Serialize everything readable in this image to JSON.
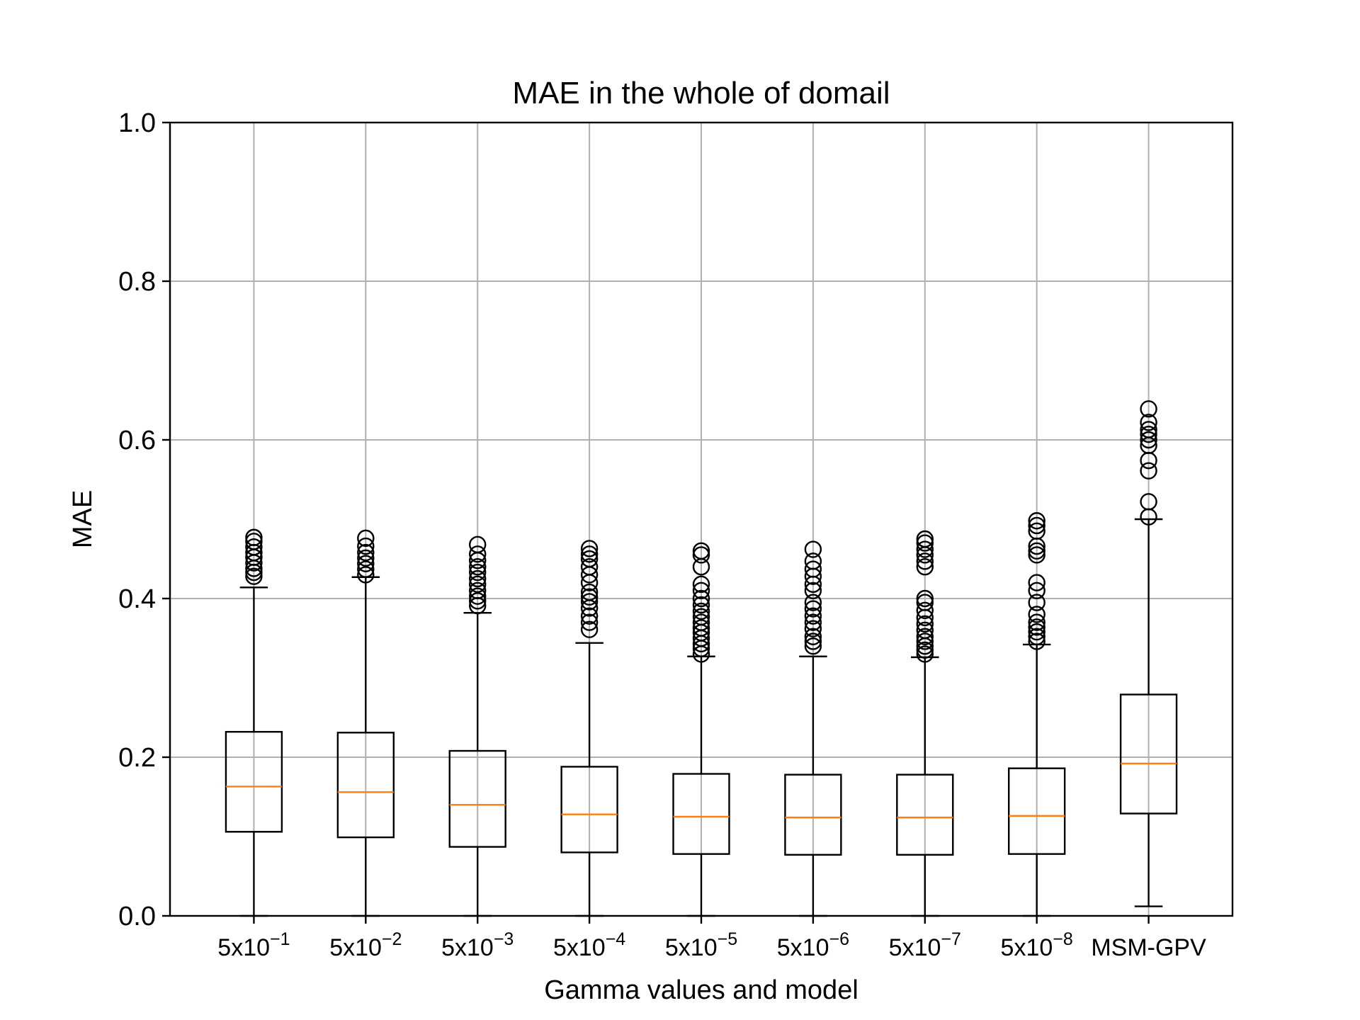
{
  "chart_data": {
    "type": "box",
    "title": "MAE in the whole of domail",
    "xlabel": "Gamma values and model",
    "ylabel": "MAE",
    "ylim": [
      0.0,
      1.0
    ],
    "yticks": [
      "0.0",
      "0.2",
      "0.4",
      "0.6",
      "0.8",
      "1.0"
    ],
    "grid": true,
    "colors": {
      "box": "#000000",
      "median": "#ff7f0e",
      "grid": "#b0b0b0"
    },
    "categories": [
      {
        "base": "5x10",
        "exp": "−1"
      },
      {
        "base": "5x10",
        "exp": "−2"
      },
      {
        "base": "5x10",
        "exp": "−3"
      },
      {
        "base": "5x10",
        "exp": "−4"
      },
      {
        "base": "5x10",
        "exp": "−5"
      },
      {
        "base": "5x10",
        "exp": "−6"
      },
      {
        "base": "5x10",
        "exp": "−7"
      },
      {
        "base": "5x10",
        "exp": "−8"
      },
      {
        "base": "MSM-GPV",
        "exp": ""
      }
    ],
    "boxes": [
      {
        "whisker_low": 0.0,
        "q1": 0.106,
        "median": 0.163,
        "q3": 0.232,
        "whisker_high": 0.414,
        "outliers": [
          0.428,
          0.433,
          0.438,
          0.445,
          0.452,
          0.458,
          0.465,
          0.472,
          0.477
        ]
      },
      {
        "whisker_low": 0.0,
        "q1": 0.099,
        "median": 0.156,
        "q3": 0.231,
        "whisker_high": 0.427,
        "outliers": [
          0.43,
          0.437,
          0.444,
          0.451,
          0.458,
          0.466,
          0.476
        ]
      },
      {
        "whisker_low": 0.0,
        "q1": 0.087,
        "median": 0.14,
        "q3": 0.208,
        "whisker_high": 0.382,
        "outliers": [
          0.391,
          0.397,
          0.403,
          0.41,
          0.418,
          0.425,
          0.433,
          0.44,
          0.448,
          0.456,
          0.468
        ]
      },
      {
        "whisker_low": 0.0,
        "q1": 0.08,
        "median": 0.128,
        "q3": 0.188,
        "whisker_high": 0.344,
        "outliers": [
          0.361,
          0.37,
          0.378,
          0.388,
          0.396,
          0.402,
          0.408,
          0.42,
          0.43,
          0.44,
          0.45,
          0.456,
          0.463
        ]
      },
      {
        "whisker_low": 0.0,
        "q1": 0.078,
        "median": 0.125,
        "q3": 0.179,
        "whisker_high": 0.327,
        "outliers": [
          0.33,
          0.337,
          0.343,
          0.35,
          0.357,
          0.363,
          0.37,
          0.377,
          0.384,
          0.392,
          0.4,
          0.41,
          0.418,
          0.44,
          0.455,
          0.46
        ]
      },
      {
        "whisker_low": 0.0,
        "q1": 0.077,
        "median": 0.124,
        "q3": 0.178,
        "whisker_high": 0.327,
        "outliers": [
          0.34,
          0.346,
          0.352,
          0.362,
          0.37,
          0.378,
          0.387,
          0.395,
          0.41,
          0.418,
          0.428,
          0.437,
          0.447,
          0.462
        ]
      },
      {
        "whisker_low": 0.0,
        "q1": 0.077,
        "median": 0.124,
        "q3": 0.178,
        "whisker_high": 0.326,
        "outliers": [
          0.33,
          0.335,
          0.34,
          0.346,
          0.352,
          0.36,
          0.368,
          0.376,
          0.385,
          0.395,
          0.4,
          0.44,
          0.447,
          0.455,
          0.462,
          0.47,
          0.475
        ]
      },
      {
        "whisker_low": 0.0,
        "q1": 0.078,
        "median": 0.126,
        "q3": 0.186,
        "whisker_high": 0.342,
        "outliers": [
          0.346,
          0.352,
          0.358,
          0.364,
          0.37,
          0.38,
          0.395,
          0.41,
          0.42,
          0.455,
          0.46,
          0.466,
          0.485,
          0.492,
          0.498
        ]
      },
      {
        "whisker_low": 0.012,
        "q1": 0.129,
        "median": 0.192,
        "q3": 0.279,
        "whisker_high": 0.5,
        "outliers": [
          0.503,
          0.522,
          0.561,
          0.574,
          0.593,
          0.6,
          0.607,
          0.613,
          0.622,
          0.639
        ]
      }
    ]
  }
}
